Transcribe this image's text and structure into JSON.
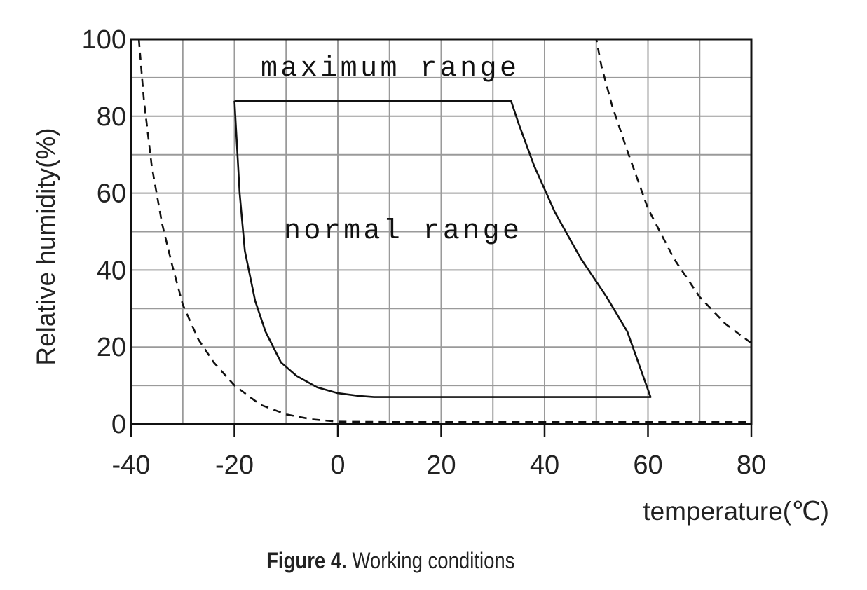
{
  "chart_data": {
    "type": "line",
    "xlabel": "temperature(℃)",
    "ylabel": "Relative humidity(%)",
    "xlim": [
      -40,
      80
    ],
    "ylim": [
      0,
      100
    ],
    "x_ticks": [
      -40,
      -20,
      0,
      20,
      40,
      60,
      80
    ],
    "y_ticks": [
      0,
      20,
      40,
      60,
      80,
      100
    ],
    "x_tick_labels": [
      "-40",
      "-20",
      "0",
      "20",
      "40",
      "60",
      "80"
    ],
    "y_tick_labels": [
      "0",
      "20",
      "40",
      "60",
      "80",
      "100"
    ],
    "grid": true,
    "grid_step_x": 10,
    "grid_step_y": 10,
    "annotations": [
      "maximum range",
      "normal range"
    ],
    "series": [
      {
        "style": "dashed",
        "x": [
          -38.5,
          -37.5,
          -36,
          -34,
          -32,
          -30,
          -27,
          -24,
          -20,
          -15,
          -10,
          -5,
          0,
          10,
          30,
          50,
          70,
          80
        ],
        "y": [
          100,
          84,
          67,
          52,
          41,
          31,
          22,
          16,
          10,
          5,
          2.5,
          1.2,
          0.6,
          0.5,
          0.5,
          0.5,
          0.5,
          0.5
        ]
      },
      {
        "style": "dashed",
        "x": [
          -38.5,
          50,
          51,
          53,
          56,
          60,
          65,
          70,
          75,
          80
        ],
        "y": [
          100,
          100,
          93,
          83,
          71,
          56,
          43,
          33,
          26,
          21
        ]
      },
      {
        "style": "dashed",
        "x": [
          80,
          80
        ],
        "y": [
          0.5,
          21
        ]
      },
      {
        "style": "solid",
        "x": [
          -20,
          33.5,
          35,
          38,
          42,
          47,
          52,
          56,
          60.5,
          55,
          40,
          25,
          7,
          4,
          0,
          -4,
          -8,
          -11,
          -14,
          -16,
          -18,
          -19,
          -19.5,
          -20
        ],
        "y": [
          84,
          84,
          78,
          67,
          55,
          43,
          33,
          24,
          7,
          7,
          7,
          7,
          7,
          7.3,
          8,
          9.5,
          12.5,
          16,
          24,
          32,
          45,
          60,
          72,
          84
        ]
      }
    ]
  },
  "caption": {
    "bold": "Figure 4.",
    "text": " Working conditions"
  }
}
